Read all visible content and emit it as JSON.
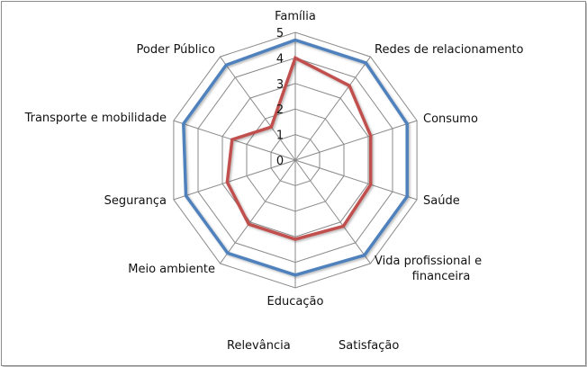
{
  "chart_data": {
    "type": "radar",
    "categories": [
      "Família",
      "Redes de relacionamento",
      "Consumo",
      "Saúde",
      [
        "Vida profissional e",
        "financeira"
      ],
      "Educação",
      "Meio ambiente",
      "Segurança",
      "Transporte e mobilidade",
      "Poder Público"
    ],
    "series": [
      {
        "name": "Relevância",
        "color": "#4f81bd",
        "values": [
          4.7,
          4.7,
          4.6,
          4.6,
          4.6,
          4.5,
          4.5,
          4.5,
          4.6,
          4.6
        ]
      },
      {
        "name": "Satisfação",
        "color": "#c0504d",
        "values": [
          4.0,
          3.6,
          3.1,
          3.1,
          3.2,
          3.1,
          3.1,
          2.8,
          2.6,
          1.6
        ]
      }
    ],
    "ticks": [
      "0",
      "1",
      "2",
      "3",
      "4",
      "5"
    ],
    "rlim": [
      0,
      5
    ],
    "grid": true,
    "legend_position": "bottom"
  }
}
